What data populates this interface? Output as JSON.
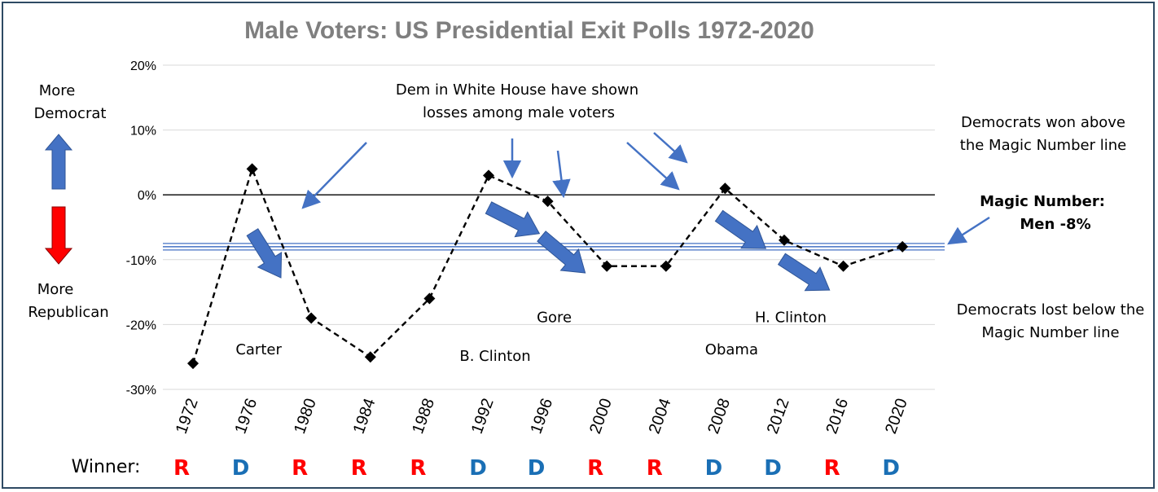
{
  "chart_data": {
    "type": "line",
    "title": "Male Voters: US Presidential Exit Polls 1972-2020",
    "x": [
      "1972",
      "1976",
      "1980",
      "1984",
      "1988",
      "1992",
      "1996",
      "2000",
      "2004",
      "2008",
      "2012",
      "2016",
      "2020"
    ],
    "series": [
      {
        "values": [
          -26,
          4,
          -19,
          -25,
          -16,
          3,
          -1,
          -11,
          -11,
          1,
          -7,
          -11,
          -8
        ]
      }
    ],
    "ylim": [
      -30,
      20
    ],
    "yticks": [
      "20%",
      "10%",
      "0%",
      "-10%",
      "-20%",
      "-30%"
    ],
    "ytick_values": [
      20,
      10,
      0,
      -10,
      -20,
      -30
    ],
    "reference_line": {
      "value": -8,
      "label_line1": "Magic Number:",
      "label_line2": "Men -8%"
    },
    "zero_line": 0,
    "grid": true,
    "line_style": "dashed",
    "marker": "diamond",
    "annotations": {
      "candidates": [
        {
          "text": "Carter",
          "x": "1976",
          "y": -24
        },
        {
          "text": "B. Clinton",
          "x": "1992",
          "y": -25
        },
        {
          "text": "Gore",
          "x": "1996",
          "y": -19
        },
        {
          "text": "Obama",
          "x": "2008",
          "y": -24
        },
        {
          "text": "H. Clinton",
          "x": "2012",
          "y": -19
        }
      ],
      "top_note": [
        "Dem in White House have shown",
        "losses among male voters"
      ],
      "above_note": [
        "Democrats won above",
        "the Magic Number line"
      ],
      "below_note": [
        "Democrats lost below the",
        "Magic Number line"
      ],
      "more_dem": [
        "More",
        "Democrat"
      ],
      "more_rep": [
        "More",
        "Republican"
      ]
    },
    "winners_label": "Winner:",
    "winners": [
      "R",
      "D",
      "R",
      "R",
      "R",
      "D",
      "D",
      "R",
      "R",
      "D",
      "D",
      "R",
      "D"
    ]
  },
  "colors": {
    "title": "#7f7f7f",
    "republican": "#ff0000",
    "democrat": "#1a6fb5",
    "arrow_blue": "#4472c4",
    "magic_line": "#4472c4",
    "grid": "#d9d9d9",
    "frame": "#2e4a63"
  }
}
